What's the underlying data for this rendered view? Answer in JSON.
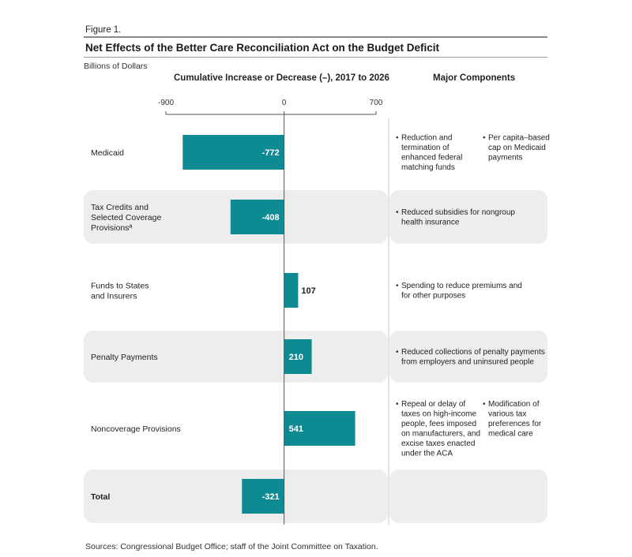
{
  "figure_label": "Figure 1.",
  "title": "Net Effects of the Better Care Reconciliation Act on the Budget Deficit",
  "unit_label": "Billions of Dollars",
  "column_headers": {
    "chart": "Cumulative Increase or Decrease (–), 2017 to 2026",
    "components": "Major Components"
  },
  "source": "Sources: Congressional Budget Office; staff of the Joint Committee on Taxation.",
  "colors": {
    "bar": "#0e8a93",
    "band": "#ededed",
    "axis": "#555555"
  },
  "chart_data": {
    "type": "bar",
    "orientation": "horizontal",
    "xlim": [
      -900,
      700
    ],
    "ticks": [
      -900,
      0,
      700
    ],
    "categories": [
      "Medicaid",
      "Tax Credits and Selected Coverage Provisionsª",
      "Funds to States and Insurers",
      "Penalty Payments",
      "Noncoverage Provisions",
      "Total"
    ],
    "values": [
      -772,
      -408,
      107,
      210,
      541,
      -321
    ]
  },
  "rows": [
    {
      "label_lines": [
        "Medicaid"
      ],
      "value_label": "-772",
      "bold": false,
      "shaded": false,
      "components": [
        [
          "Reduction and",
          "termination of",
          "enhanced federal",
          "matching funds"
        ],
        [
          "Per capita–based",
          "cap on Medicaid",
          "payments"
        ]
      ]
    },
    {
      "label_lines": [
        "Tax Credits and",
        "Selected Coverage",
        "Provisionsª"
      ],
      "value_label": "-408",
      "bold": false,
      "shaded": true,
      "components": [
        [
          "Reduced subsidies for nongroup",
          "health insurance"
        ]
      ]
    },
    {
      "label_lines": [
        "Funds to States",
        "and Insurers"
      ],
      "value_label": "107",
      "bold": false,
      "shaded": false,
      "components": [
        [
          "Spending to reduce premiums and",
          "for other purposes"
        ]
      ]
    },
    {
      "label_lines": [
        "Penalty Payments"
      ],
      "value_label": "210",
      "bold": false,
      "shaded": true,
      "components": [
        [
          "Reduced collections of penalty payments",
          "from employers and uninsured people"
        ]
      ]
    },
    {
      "label_lines": [
        "Noncoverage Provisions"
      ],
      "value_label": "541",
      "bold": false,
      "shaded": false,
      "components": [
        [
          "Repeal or delay of",
          "taxes on high-income",
          "people, fees imposed",
          "on manufacturers, and",
          "excise taxes enacted",
          "under the ACA"
        ],
        [
          "Modification of",
          "various tax",
          "preferences for",
          "medical care"
        ]
      ]
    },
    {
      "label_lines": [
        "Total"
      ],
      "value_label": "-321",
      "bold": true,
      "shaded": true,
      "components": []
    }
  ]
}
